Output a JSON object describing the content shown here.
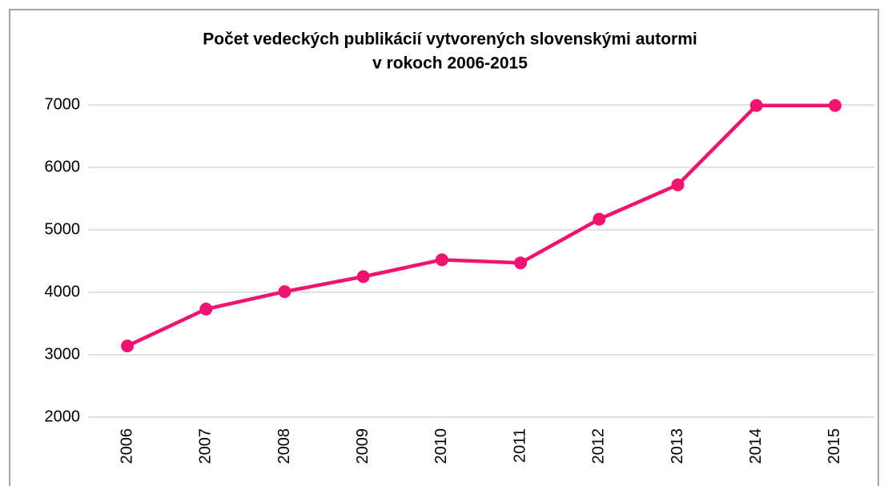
{
  "chart_data": {
    "type": "line",
    "title": [
      "Počet vedeckých publikácií vytvorených slovenskými autormi",
      "v rokoch 2006-2015"
    ],
    "categories": [
      "2006",
      "2007",
      "2008",
      "2009",
      "2010",
      "2011",
      "2012",
      "2013",
      "2014",
      "2015"
    ],
    "values": [
      3140,
      3730,
      4010,
      4250,
      4520,
      4470,
      5170,
      5720,
      6990,
      6990
    ],
    "color": "#ee1470",
    "ylim": [
      2000,
      7000
    ],
    "yticks": [
      2000,
      3000,
      4000,
      5000,
      6000,
      7000
    ],
    "grid": true
  }
}
